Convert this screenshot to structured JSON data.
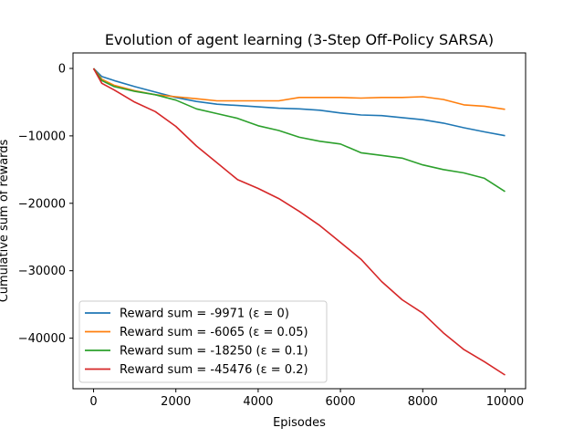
{
  "chart_data": {
    "type": "line",
    "title": "Evolution of agent learning (3-Step Off-Policy SARSA)",
    "xlabel": "Episodes",
    "ylabel": "Cumulative sum of rewards",
    "xlim": [
      -500,
      10500
    ],
    "ylim": [
      -47500,
      2300
    ],
    "xticks": [
      0,
      2000,
      4000,
      6000,
      8000,
      10000
    ],
    "yticks": [
      0,
      -10000,
      -20000,
      -30000,
      -40000
    ],
    "ytick_labels": [
      "0",
      "−10000",
      "−20000",
      "−30000",
      "−40000"
    ],
    "grid": false,
    "legend_position": "lower-left",
    "series": [
      {
        "name": "Reward sum = -9971 (ε = 0)",
        "color": "#1f77b4",
        "x": [
          0,
          200,
          500,
          1000,
          1500,
          2000,
          2500,
          3000,
          3500,
          4000,
          4500,
          5000,
          5500,
          6000,
          6500,
          7000,
          7500,
          8000,
          8500,
          9000,
          9500,
          10000
        ],
        "y": [
          0,
          -1200,
          -1800,
          -2700,
          -3500,
          -4300,
          -4900,
          -5300,
          -5500,
          -5700,
          -5900,
          -6000,
          -6200,
          -6600,
          -6900,
          -7000,
          -7300,
          -7600,
          -8100,
          -8800,
          -9400,
          -9971
        ]
      },
      {
        "name": "Reward sum = -6065 (ε = 0.05)",
        "color": "#ff7f0e",
        "x": [
          0,
          200,
          500,
          1000,
          1500,
          2000,
          2500,
          3000,
          3500,
          4000,
          4500,
          5000,
          5500,
          6000,
          6500,
          7000,
          7500,
          8000,
          8500,
          9000,
          9500,
          10000
        ],
        "y": [
          0,
          -1600,
          -2500,
          -3300,
          -3900,
          -4200,
          -4500,
          -4800,
          -4800,
          -4800,
          -4800,
          -4300,
          -4300,
          -4300,
          -4400,
          -4300,
          -4300,
          -4200,
          -4600,
          -5400,
          -5600,
          -6065
        ]
      },
      {
        "name": "Reward sum = -18250 (ε = 0.1)",
        "color": "#2ca02c",
        "x": [
          0,
          200,
          500,
          1000,
          1500,
          2000,
          2500,
          3000,
          3500,
          4000,
          4500,
          5000,
          5500,
          6000,
          6500,
          7000,
          7500,
          8000,
          8500,
          9000,
          9500,
          10000
        ],
        "y": [
          0,
          -1800,
          -2700,
          -3400,
          -3900,
          -4700,
          -6000,
          -6700,
          -7400,
          -8500,
          -9200,
          -10200,
          -10800,
          -11200,
          -12500,
          -12900,
          -13300,
          -14300,
          -15000,
          -15500,
          -16300,
          -18250
        ]
      },
      {
        "name": "Reward sum = -45476 (ε = 0.2)",
        "color": "#d62728",
        "x": [
          0,
          200,
          500,
          1000,
          1500,
          2000,
          2500,
          3000,
          3500,
          4000,
          4500,
          5000,
          5500,
          6000,
          6500,
          7000,
          7500,
          8000,
          8500,
          9000,
          9500,
          10000
        ],
        "y": [
          0,
          -2200,
          -3200,
          -5000,
          -6400,
          -8600,
          -11500,
          -14000,
          -16500,
          -17800,
          -19300,
          -21200,
          -23300,
          -25800,
          -28300,
          -31600,
          -34300,
          -36300,
          -39200,
          -41700,
          -43500,
          -45476
        ]
      }
    ]
  }
}
